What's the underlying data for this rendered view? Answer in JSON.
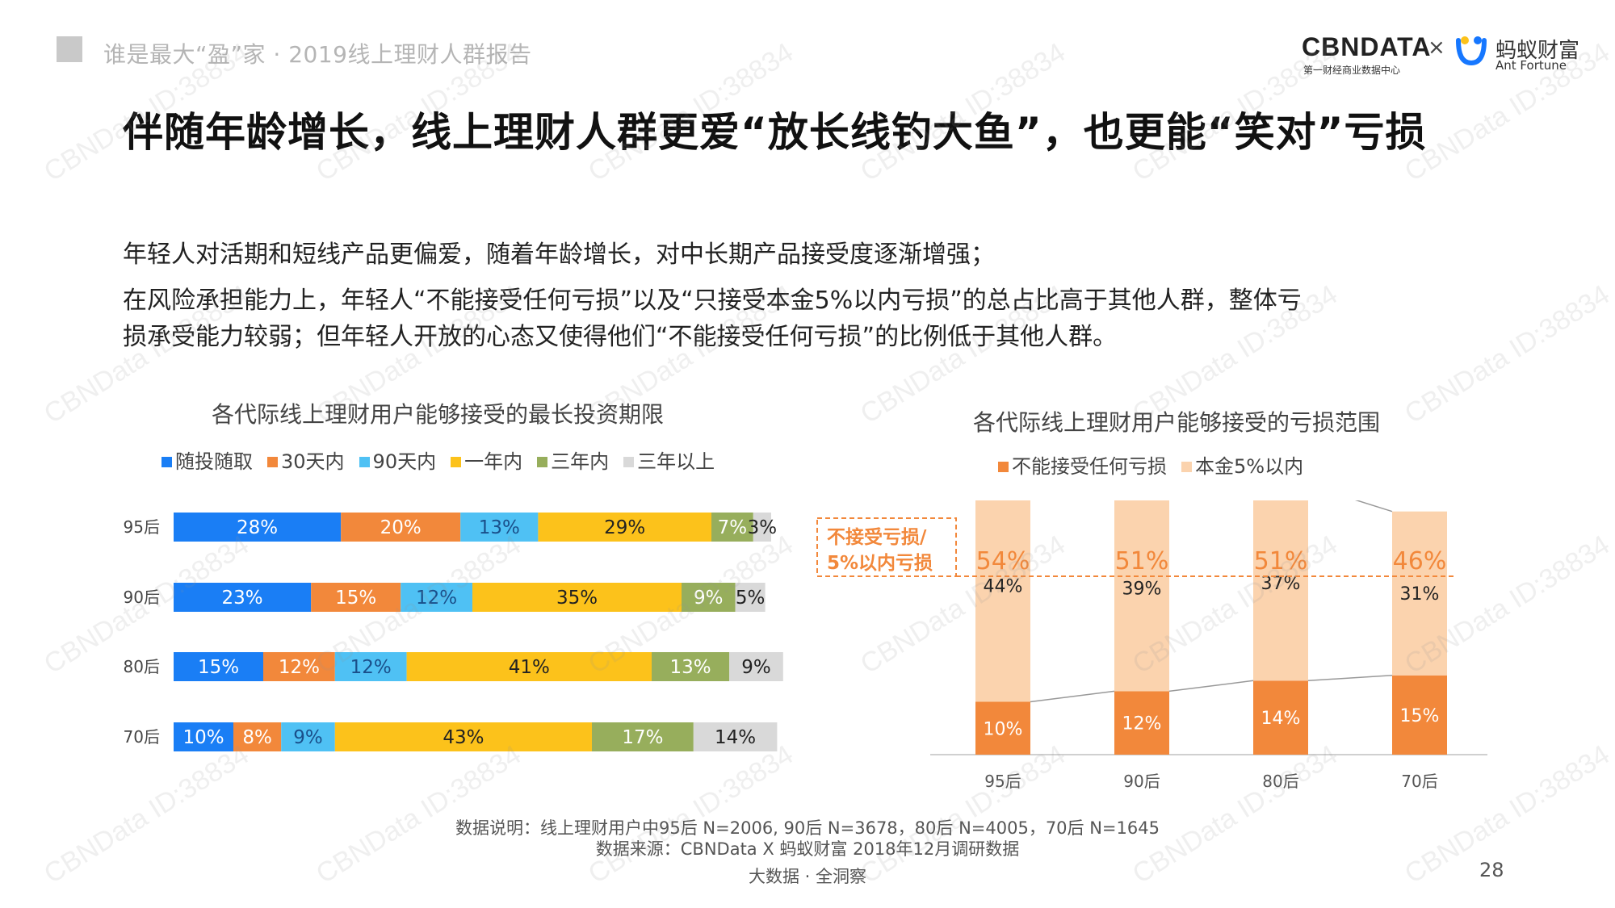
{
  "header": {
    "report_title": "谁是最大“盈”家 · 2019线上理财人群报告",
    "logo_cbndata": "CBNDATA",
    "logo_cbndata_sub": "第一财经商业数据中心",
    "logo_x": "×",
    "logo_ant_cn": "蚂蚁财富",
    "logo_ant_en": "Ant Fortune"
  },
  "main_title": "伴随年龄增长，线上理财人群更爱“放长线钓大鱼”，也更能“笑对”亏损",
  "description": {
    "line1": "年轻人对活期和短线产品更偏爱，随着年龄增长，对中长期产品接受度逐渐增强；",
    "line2": "在风险承担能力上，年轻人“不能接受任何亏损”以及“只接受本金5%以内亏损”的总占比高于其他人群，整体亏",
    "line3": "损承受能力较弱；但年轻人开放的心态又使得他们“不能接受任何亏损”的比例低于其他人群。"
  },
  "chart_data": [
    {
      "type": "bar",
      "orientation": "horizontal-stacked-100",
      "title": "各代际线上理财用户能够接受的最长投资期限",
      "categories": [
        "95后",
        "90后",
        "80后",
        "70后"
      ],
      "series": [
        {
          "name": "随投随取",
          "color": "#1a7ef5",
          "values": [
            28,
            23,
            15,
            10
          ]
        },
        {
          "name": "30天内",
          "color": "#f2883b",
          "values": [
            20,
            15,
            12,
            8
          ]
        },
        {
          "name": "90天内",
          "color": "#4fc1f4",
          "values": [
            13,
            12,
            12,
            9
          ]
        },
        {
          "name": "一年内",
          "color": "#fcc21b",
          "values": [
            29,
            35,
            41,
            43
          ]
        },
        {
          "name": "三年内",
          "color": "#97ae5c",
          "values": [
            7,
            9,
            13,
            17
          ]
        },
        {
          "name": "三年以上",
          "color": "#d9d9d9",
          "values": [
            3,
            5,
            9,
            14
          ]
        }
      ],
      "label_suffix": "%"
    },
    {
      "type": "bar",
      "orientation": "vertical-stacked",
      "title": "各代际线上理财用户能够接受的亏损范围",
      "categories": [
        "95后",
        "90后",
        "80后",
        "70后"
      ],
      "series": [
        {
          "name": "不能接受任何亏损",
          "color": "#f2883b",
          "values": [
            10,
            12,
            14,
            15
          ]
        },
        {
          "name": "本金5%以内",
          "color": "#fbd3ae",
          "values": [
            44,
            39,
            37,
            31
          ]
        }
      ],
      "totals": [
        54,
        51,
        51,
        46
      ],
      "totals_label": "不接受亏损/\n5%以内亏损",
      "label_suffix": "%"
    }
  ],
  "footer": {
    "data_note": "数据说明：线上理财用户中95后 N=2006, 90后 N=3678，80后 N=4005，70后 N=1645",
    "data_source": "数据来源：CBNData X 蚂蚁财富 2018年12月调研数据",
    "tagline": "大数据 · 全洞察",
    "page_number": "28"
  },
  "watermark": "CBNData ID:38834"
}
